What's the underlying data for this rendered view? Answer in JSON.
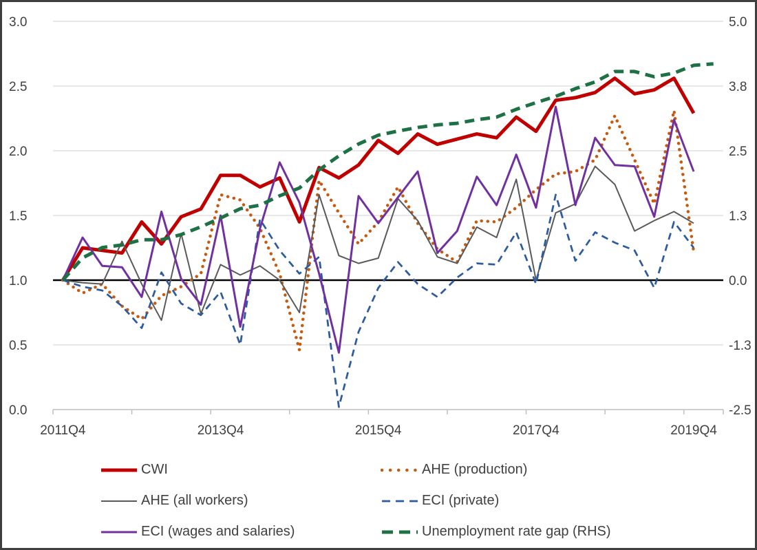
{
  "chart_data": {
    "type": "line",
    "title": "",
    "x_categories": [
      "2011Q4",
      "2012Q1",
      "2012Q2",
      "2012Q3",
      "2012Q4",
      "2013Q1",
      "2013Q2",
      "2013Q3",
      "2013Q4",
      "2014Q1",
      "2014Q2",
      "2014Q3",
      "2014Q4",
      "2015Q1",
      "2015Q2",
      "2015Q3",
      "2015Q4",
      "2016Q1",
      "2016Q2",
      "2016Q3",
      "2016Q4",
      "2017Q1",
      "2017Q2",
      "2017Q3",
      "2017Q4",
      "2018Q1",
      "2018Q2",
      "2018Q3",
      "2018Q4",
      "2019Q1",
      "2019Q2",
      "2019Q3",
      "2019Q4",
      "2020Q1"
    ],
    "x_tick_labels": [
      "2011Q4",
      "2013Q4",
      "2015Q4",
      "2017Q4",
      "2019Q4"
    ],
    "x_label_category_index": [
      0,
      8,
      16,
      24,
      32
    ],
    "left_axis": {
      "min": 0,
      "max": 3,
      "tick_labels": [
        "3.0",
        "2.5",
        "2.0",
        "1.5",
        "1.0",
        "0.5",
        "0.0"
      ],
      "tick_values": [
        3.0,
        2.5,
        2.0,
        1.5,
        1.0,
        0.5,
        0.0
      ]
    },
    "right_axis": {
      "min": -2.5,
      "max": 5.0,
      "tick_labels": [
        "5.0",
        "3.8",
        "2.5",
        "1.3",
        "0.0",
        "-1.3",
        "-2.5"
      ],
      "tick_values": [
        5.0,
        3.75,
        2.5,
        1.25,
        0.0,
        -1.25,
        -2.5
      ]
    },
    "baseline": {
      "axis": "left",
      "value": 1.0,
      "color": "#000000"
    },
    "grid_color": "#d9d9d9",
    "axis_line_color": "#bfbfbf",
    "legend_position": "bottom",
    "series": [
      {
        "name": "CWI",
        "color": "#c00000",
        "style": "solid",
        "width": 5,
        "axis": "left",
        "values": [
          1.0,
          1.25,
          1.23,
          1.21,
          1.45,
          1.28,
          1.49,
          1.55,
          1.81,
          1.81,
          1.72,
          1.79,
          1.45,
          1.87,
          1.79,
          1.89,
          2.08,
          1.98,
          2.13,
          2.05,
          2.09,
          2.13,
          2.1,
          2.26,
          2.15,
          2.39,
          2.41,
          2.45,
          2.56,
          2.44,
          2.47,
          2.56,
          2.29
        ]
      },
      {
        "name": "AHE (production)",
        "color": "#c55a11",
        "style": "dotted",
        "width": 4.5,
        "axis": "left",
        "values": [
          1.0,
          0.9,
          0.97,
          0.8,
          0.7,
          0.88,
          0.95,
          1.05,
          1.66,
          1.62,
          1.4,
          1.05,
          0.46,
          1.77,
          1.52,
          1.28,
          1.45,
          1.72,
          1.44,
          1.24,
          1.14,
          1.46,
          1.45,
          1.56,
          1.7,
          1.82,
          1.84,
          1.93,
          2.27,
          1.93,
          1.59,
          2.31,
          1.22
        ]
      },
      {
        "name": "AHE (all workers)",
        "color": "#595959",
        "style": "solid",
        "width": 2,
        "axis": "left",
        "values": [
          1.0,
          0.98,
          0.97,
          1.3,
          0.97,
          0.69,
          1.36,
          0.74,
          1.12,
          1.04,
          1.11,
          1.0,
          0.75,
          1.66,
          1.19,
          1.13,
          1.17,
          1.63,
          1.46,
          1.18,
          1.13,
          1.41,
          1.33,
          1.78,
          1.0,
          1.52,
          1.59,
          1.88,
          1.74,
          1.38,
          1.46,
          1.53,
          1.44
        ]
      },
      {
        "name": "ECI (private)",
        "color": "#2e5b9f",
        "style": "dashed",
        "width": 2.75,
        "axis": "left",
        "values": [
          1.0,
          0.95,
          0.92,
          0.8,
          0.63,
          1.06,
          0.82,
          0.73,
          0.91,
          0.5,
          1.47,
          1.23,
          1.05,
          1.18,
          0.02,
          0.6,
          0.94,
          1.14,
          0.97,
          0.87,
          1.02,
          1.13,
          1.12,
          1.37,
          0.97,
          1.66,
          1.15,
          1.37,
          1.29,
          1.23,
          0.94,
          1.45,
          1.25
        ]
      },
      {
        "name": "ECI (wages and salaries)",
        "color": "#7030a0",
        "style": "solid",
        "width": 3,
        "axis": "left",
        "values": [
          1.0,
          1.33,
          1.11,
          1.1,
          0.87,
          1.53,
          1.01,
          0.81,
          1.5,
          0.64,
          1.4,
          1.91,
          1.6,
          1.05,
          0.44,
          1.65,
          1.44,
          1.64,
          1.84,
          1.21,
          1.38,
          1.8,
          1.58,
          1.97,
          1.56,
          2.34,
          1.58,
          2.1,
          1.89,
          1.88,
          1.49,
          2.24,
          1.84
        ]
      },
      {
        "name": "Unemployment rate gap (RHS)",
        "color": "#1e7145",
        "style": "dashed-thick",
        "width": 5,
        "axis": "right",
        "values": [
          0.0,
          0.43,
          0.63,
          0.68,
          0.78,
          0.78,
          0.88,
          1.03,
          1.2,
          1.38,
          1.45,
          1.63,
          1.78,
          2.13,
          2.4,
          2.63,
          2.8,
          2.88,
          2.95,
          3.0,
          3.03,
          3.1,
          3.15,
          3.3,
          3.43,
          3.55,
          3.7,
          3.83,
          4.03,
          4.03,
          3.93,
          4.0,
          4.15,
          4.18
        ]
      }
    ],
    "legend_columns": [
      [
        0,
        2,
        4
      ],
      [
        1,
        3,
        5
      ]
    ]
  }
}
